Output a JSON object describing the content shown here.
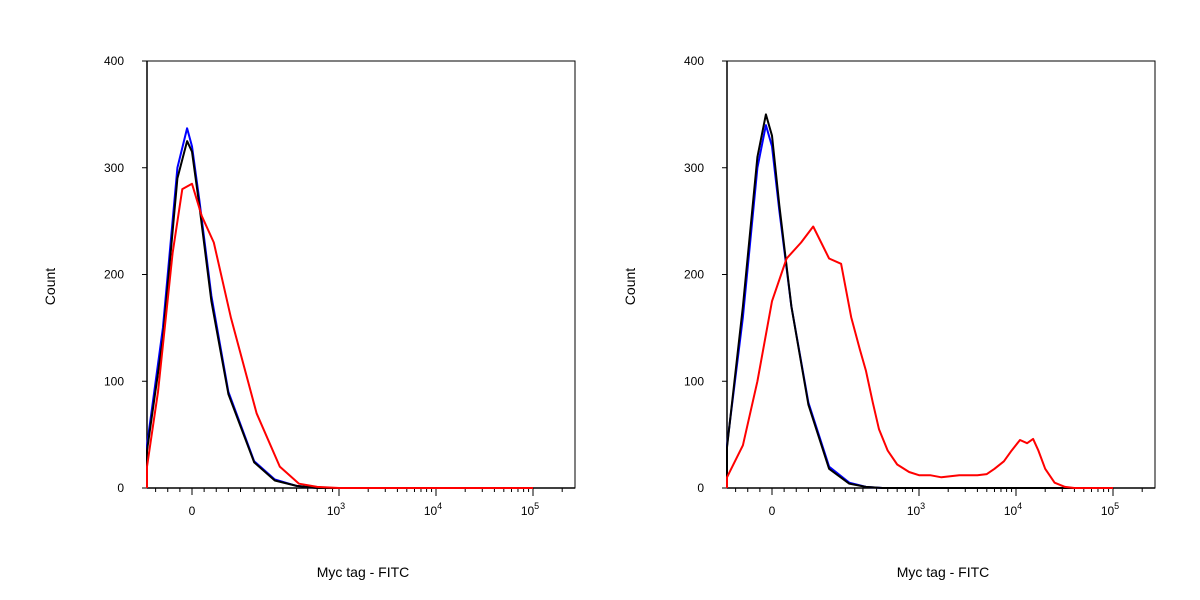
{
  "chart_data": [
    {
      "type": "line",
      "title": "",
      "xlabel": "Myc tag - FITC",
      "ylabel": "Count",
      "xscale": "biexponential",
      "ylim": [
        0,
        400
      ],
      "yticks": [
        0,
        100,
        200,
        300,
        400
      ],
      "xticks": [
        {
          "value": 0,
          "base": "0",
          "exp": ""
        },
        {
          "value": 1000,
          "base": "10",
          "exp": "3"
        },
        {
          "value": 10000,
          "base": "10",
          "exp": "4"
        },
        {
          "value": 100000,
          "base": "10",
          "exp": "5"
        }
      ],
      "grid": false,
      "series": [
        {
          "color": "#0000ff",
          "x": [
            -450,
            -300,
            -200,
            -120,
            -60,
            -20,
            0,
            30,
            80,
            150,
            250,
            350,
            500,
            700,
            1000,
            100000
          ],
          "values": [
            0,
            5,
            40,
            150,
            300,
            337,
            320,
            270,
            180,
            90,
            25,
            8,
            2,
            0,
            0,
            0
          ]
        },
        {
          "color": "#000000",
          "x": [
            -450,
            -300,
            -200,
            -120,
            -60,
            -20,
            0,
            30,
            80,
            150,
            250,
            350,
            500,
            700,
            1000,
            100000
          ],
          "values": [
            0,
            4,
            35,
            140,
            290,
            325,
            315,
            265,
            175,
            88,
            24,
            7,
            2,
            0,
            0,
            0
          ]
        },
        {
          "color": "#ff0000",
          "x": [
            -450,
            -300,
            -200,
            -140,
            -80,
            -40,
            0,
            40,
            90,
            160,
            260,
            380,
            520,
            700,
            1000,
            100000
          ],
          "values": [
            0,
            2,
            20,
            90,
            220,
            280,
            285,
            255,
            230,
            160,
            70,
            20,
            4,
            1,
            0,
            0
          ]
        }
      ]
    },
    {
      "type": "line",
      "title": "",
      "xlabel": "Myc tag - FITC",
      "ylabel": "Count",
      "xscale": "biexponential",
      "ylim": [
        0,
        400
      ],
      "yticks": [
        0,
        100,
        200,
        300,
        400
      ],
      "xticks": [
        {
          "value": 0,
          "base": "0",
          "exp": ""
        },
        {
          "value": 1000,
          "base": "10",
          "exp": "3"
        },
        {
          "value": 10000,
          "base": "10",
          "exp": "4"
        },
        {
          "value": 100000,
          "base": "10",
          "exp": "5"
        }
      ],
      "grid": false,
      "series": [
        {
          "color": "#0000ff",
          "x": [
            -450,
            -300,
            -200,
            -120,
            -60,
            -25,
            0,
            30,
            80,
            150,
            230,
            320,
            420,
            550,
            800,
            100000
          ],
          "values": [
            0,
            5,
            40,
            160,
            300,
            340,
            320,
            260,
            170,
            80,
            20,
            5,
            1,
            0,
            0,
            0
          ]
        },
        {
          "color": "#000000",
          "x": [
            -450,
            -300,
            -200,
            -120,
            -60,
            -25,
            0,
            30,
            80,
            150,
            230,
            320,
            420,
            550,
            800,
            100000
          ],
          "values": [
            0,
            4,
            38,
            170,
            310,
            350,
            330,
            265,
            170,
            78,
            18,
            4,
            1,
            0,
            0,
            0
          ]
        },
        {
          "color": "#ff0000",
          "x": [
            -450,
            -300,
            -200,
            -120,
            -60,
            0,
            60,
            120,
            170,
            230,
            280,
            330,
            380,
            420,
            470,
            520,
            600,
            700,
            850,
            1000,
            1300,
            1700,
            2100,
            2600,
            3200,
            4000,
            5000,
            6000,
            7500,
            9000,
            11000,
            13000,
            15000,
            17000,
            20000,
            25000,
            32000,
            40000,
            100000
          ],
          "values": [
            0,
            2,
            10,
            40,
            100,
            175,
            215,
            230,
            245,
            215,
            210,
            160,
            130,
            110,
            80,
            55,
            35,
            22,
            15,
            12,
            12,
            10,
            11,
            12,
            12,
            12,
            13,
            18,
            25,
            35,
            45,
            42,
            46,
            35,
            18,
            5,
            1,
            0,
            0
          ]
        }
      ]
    }
  ]
}
